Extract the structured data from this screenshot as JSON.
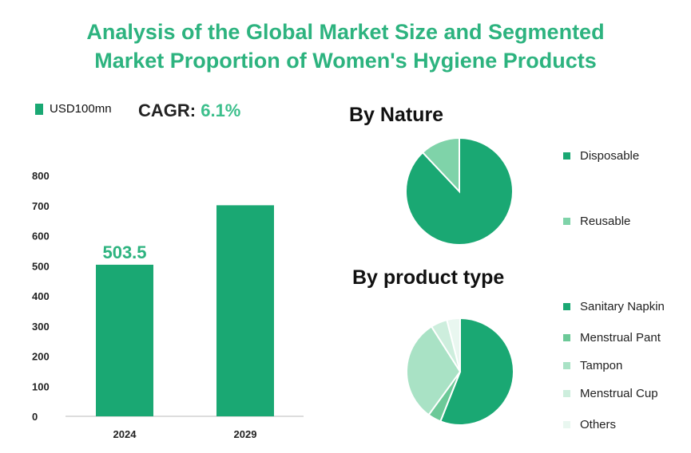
{
  "title_line1": "Analysis of the Global Market Size and Segmented",
  "title_line2": "Market Proportion of Women's Hygiene Products",
  "unit_label": "USD100mn",
  "cagr_label": "CAGR: ",
  "cagr_value": "6.1%",
  "colors": {
    "title": "#2db37f",
    "bar": "#1aa873",
    "pie_disposable": "#1aa873",
    "pie_reusable": "#7fd3a9",
    "pie_napkin": "#1aa873",
    "pie_pant": "#6cc998",
    "pie_tampon": "#a9e2c5",
    "pie_cup": "#cdeedd",
    "pie_others": "#e9f7f0"
  },
  "chart_data": [
    {
      "type": "bar",
      "categories": [
        "2024",
        "2029"
      ],
      "values": [
        503.5,
        701
      ],
      "data_labels": [
        "503.5",
        ""
      ],
      "ylim": [
        0,
        800
      ],
      "yticks": [
        0,
        100,
        200,
        300,
        400,
        500,
        600,
        700,
        800
      ],
      "grid": false
    },
    {
      "type": "pie",
      "title": "By Nature",
      "labels": [
        "Disposable",
        "Reusable"
      ],
      "values": [
        88,
        12
      ],
      "legend": "right"
    },
    {
      "type": "pie",
      "title": "By product type",
      "labels": [
        "Sanitary Napkin",
        "Menstrual Pant",
        "Tampon",
        "Menstrual Cup",
        "Others"
      ],
      "values": [
        56,
        4,
        31,
        5,
        4
      ],
      "legend": "right"
    }
  ]
}
